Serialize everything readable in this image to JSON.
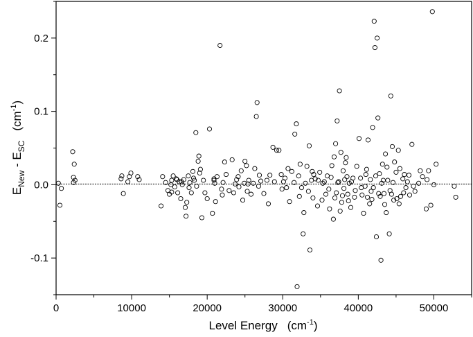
{
  "chart_data": {
    "type": "scatter",
    "title": "",
    "xlabel": {
      "main": "Level Energy",
      "unit_open": "(cm",
      "unit_sup": "-1",
      "unit_close": ")"
    },
    "ylabel": {
      "e1": "E",
      "sub1": "New",
      "mid": " - E",
      "sub2": "SC",
      "unit_open": "(cm",
      "unit_sup": "-1",
      "unit_close": ")"
    },
    "xlim": [
      0,
      55000
    ],
    "ylim": [
      -0.15,
      0.25
    ],
    "x_ticks": [
      0,
      10000,
      20000,
      30000,
      40000,
      50000
    ],
    "x_tick_labels": [
      "0",
      "10000",
      "20000",
      "30000",
      "40000",
      "50000"
    ],
    "y_ticks": [
      -0.1,
      0.0,
      0.1,
      0.2
    ],
    "y_tick_labels": [
      "-0.1",
      "0.0",
      "0.1",
      "0.2"
    ],
    "x_minor_step": 5000,
    "y_minor_step": 0.05,
    "reference_line": {
      "y": 0.001,
      "style": "dotted"
    },
    "grid": false,
    "marker": "open-circle",
    "points": [
      [
        300,
        0.002
      ],
      [
        500,
        -0.028
      ],
      [
        700,
        -0.005
      ],
      [
        2200,
        0.045
      ],
      [
        2300,
        0.01
      ],
      [
        2400,
        0.028
      ],
      [
        2300,
        0.003
      ],
      [
        2500,
        0.006
      ],
      [
        8600,
        0.008
      ],
      [
        8700,
        0.012
      ],
      [
        8900,
        -0.012
      ],
      [
        9500,
        0.004
      ],
      [
        9700,
        0.011
      ],
      [
        9900,
        0.016
      ],
      [
        10800,
        0.011
      ],
      [
        11000,
        0.007
      ],
      [
        13900,
        -0.029
      ],
      [
        14100,
        0.011
      ],
      [
        14500,
        0.003
      ],
      [
        14800,
        -0.008
      ],
      [
        15000,
        -0.013
      ],
      [
        15200,
        0.0
      ],
      [
        15300,
        0.006
      ],
      [
        15500,
        0.012
      ],
      [
        15700,
        -0.003
      ],
      [
        15900,
        0.008
      ],
      [
        16100,
        -0.011
      ],
      [
        16300,
        0.004
      ],
      [
        16500,
        -0.019
      ],
      [
        16700,
        0.0
      ],
      [
        16900,
        0.007
      ],
      [
        17100,
        -0.031
      ],
      [
        17200,
        -0.043
      ],
      [
        17300,
        -0.024
      ],
      [
        17500,
        0.012
      ],
      [
        17700,
        0.003
      ],
      [
        17900,
        -0.011
      ],
      [
        18100,
        0.018
      ],
      [
        18300,
        0.006
      ],
      [
        18500,
        0.071
      ],
      [
        18600,
        -0.002
      ],
      [
        18800,
        0.032
      ],
      [
        18900,
        0.039
      ],
      [
        19100,
        0.021
      ],
      [
        19300,
        -0.045
      ],
      [
        19500,
        0.006
      ],
      [
        19700,
        -0.011
      ],
      [
        20000,
        -0.019
      ],
      [
        20300,
        0.076
      ],
      [
        20700,
        -0.039
      ],
      [
        20900,
        0.008
      ],
      [
        21000,
        0.002
      ],
      [
        21100,
        -0.023
      ],
      [
        21300,
        0.011
      ],
      [
        21700,
        0.19
      ],
      [
        21900,
        -0.006
      ],
      [
        22100,
        0.003
      ],
      [
        22300,
        0.031
      ],
      [
        22500,
        0.014
      ],
      [
        22900,
        -0.008
      ],
      [
        23300,
        0.034
      ],
      [
        23500,
        -0.011
      ],
      [
        23900,
        0.007
      ],
      [
        24200,
        -0.003
      ],
      [
        24500,
        0.019
      ],
      [
        24700,
        -0.021
      ],
      [
        24900,
        0.002
      ],
      [
        25000,
        0.032
      ],
      [
        25200,
        0.026
      ],
      [
        25300,
        -0.009
      ],
      [
        25500,
        0.006
      ],
      [
        25800,
        -0.013
      ],
      [
        26100,
        0.002
      ],
      [
        26300,
        0.022
      ],
      [
        26500,
        0.093
      ],
      [
        26600,
        0.112
      ],
      [
        26800,
        -0.002
      ],
      [
        27100,
        0.005
      ],
      [
        27500,
        -0.012
      ],
      [
        28100,
        -0.026
      ],
      [
        28300,
        0.013
      ],
      [
        28700,
        0.051
      ],
      [
        28900,
        0.004
      ],
      [
        29200,
        0.047
      ],
      [
        29500,
        0.047
      ],
      [
        29800,
        0.014
      ],
      [
        30100,
        0.004
      ],
      [
        30500,
        -0.004
      ],
      [
        30700,
        0.022
      ],
      [
        30900,
        -0.023
      ],
      [
        31200,
        0.018
      ],
      [
        31600,
        0.069
      ],
      [
        31800,
        0.083
      ],
      [
        31900,
        -0.139
      ],
      [
        32100,
        0.012
      ],
      [
        32300,
        0.028
      ],
      [
        32700,
        -0.067
      ],
      [
        32800,
        -0.038
      ],
      [
        33000,
        0.002
      ],
      [
        33200,
        0.025
      ],
      [
        33400,
        -0.009
      ],
      [
        33500,
        0.053
      ],
      [
        33600,
        -0.089
      ],
      [
        33800,
        0.006
      ],
      [
        34000,
        -0.018
      ],
      [
        34300,
        0.008
      ],
      [
        34600,
        -0.029
      ],
      [
        34900,
        0.017
      ],
      [
        35200,
        -0.021
      ],
      [
        35500,
        0.004
      ],
      [
        35900,
        0.012
      ],
      [
        36200,
        -0.033
      ],
      [
        36500,
        0.026
      ],
      [
        36700,
        -0.047
      ],
      [
        36800,
        0.038
      ],
      [
        37000,
        0.056
      ],
      [
        37100,
        -0.011
      ],
      [
        37200,
        0.087
      ],
      [
        37400,
        0.004
      ],
      [
        37500,
        0.128
      ],
      [
        37700,
        0.044
      ],
      [
        37800,
        -0.024
      ],
      [
        38000,
        0.019
      ],
      [
        38200,
        0.007
      ],
      [
        38400,
        0.037
      ],
      [
        38600,
        -0.013
      ],
      [
        38800,
        0.002
      ],
      [
        39000,
        -0.031
      ],
      [
        39300,
        0.009
      ],
      [
        39500,
        -0.017
      ],
      [
        39800,
        0.025
      ],
      [
        40100,
        0.063
      ],
      [
        40400,
        -0.004
      ],
      [
        40700,
        -0.039
      ],
      [
        41000,
        0.014
      ],
      [
        41300,
        0.061
      ],
      [
        41500,
        -0.026
      ],
      [
        41700,
        -0.009
      ],
      [
        41900,
        0.078
      ],
      [
        42100,
        0.223
      ],
      [
        42200,
        0.187
      ],
      [
        42400,
        -0.071
      ],
      [
        42500,
        0.2
      ],
      [
        42600,
        0.091
      ],
      [
        42800,
        0.015
      ],
      [
        43000,
        -0.103
      ],
      [
        43200,
        0.028
      ],
      [
        43400,
        -0.012
      ],
      [
        43600,
        0.042
      ],
      [
        43900,
        0.006
      ],
      [
        44100,
        -0.067
      ],
      [
        44300,
        0.121
      ],
      [
        44500,
        0.052
      ],
      [
        44700,
        -0.021
      ],
      [
        45000,
        0.017
      ],
      [
        45300,
        0.047
      ],
      [
        45600,
        -0.016
      ],
      [
        45900,
        0.008
      ],
      [
        46300,
        -0.004
      ],
      [
        46700,
        0.013
      ],
      [
        47100,
        0.055
      ],
      [
        47500,
        -0.009
      ],
      [
        48000,
        0.002
      ],
      [
        48500,
        0.011
      ],
      [
        49000,
        -0.033
      ],
      [
        49300,
        0.019
      ],
      [
        49600,
        -0.028
      ],
      [
        49800,
        0.236
      ],
      [
        50000,
        0.0
      ],
      [
        50300,
        0.028
      ],
      [
        52700,
        -0.002
      ],
      [
        52900,
        -0.017
      ],
      [
        15300,
        -0.01
      ],
      [
        16600,
        0.004
      ],
      [
        19000,
        0.016
      ],
      [
        20900,
        0.006
      ],
      [
        24100,
        0.011
      ],
      [
        25400,
        0.001
      ],
      [
        26900,
        0.013
      ],
      [
        29900,
        -0.006
      ],
      [
        31500,
        0.003
      ],
      [
        32500,
        -0.004
      ],
      [
        34100,
        0.014
      ],
      [
        35300,
        0.002
      ],
      [
        36100,
        -0.006
      ],
      [
        36900,
        -0.018
      ],
      [
        37300,
        0.003
      ],
      [
        37600,
        -0.036
      ],
      [
        38100,
        -0.005
      ],
      [
        38500,
        0.011
      ],
      [
        39100,
        0.004
      ],
      [
        39600,
        -0.008
      ],
      [
        40300,
        0.009
      ],
      [
        40900,
        -0.002
      ],
      [
        41200,
        -0.017
      ],
      [
        41600,
        0.007
      ],
      [
        42000,
        -0.004
      ],
      [
        42300,
        0.012
      ],
      [
        42700,
        -0.012
      ],
      [
        43100,
        0.002
      ],
      [
        43500,
        -0.027
      ],
      [
        43800,
        0.024
      ],
      [
        44200,
        -0.008
      ],
      [
        44600,
        0.003
      ],
      [
        45100,
        -0.019
      ],
      [
        45500,
        0.022
      ],
      [
        46000,
        -0.011
      ],
      [
        46500,
        0.004
      ],
      [
        47300,
        -0.002
      ],
      [
        48200,
        0.019
      ],
      [
        49100,
        0.007
      ],
      [
        37900,
        -0.015
      ],
      [
        38300,
        0.03
      ],
      [
        38700,
        -0.022
      ],
      [
        40500,
        -0.014
      ],
      [
        41100,
        0.021
      ],
      [
        41800,
        -0.02
      ],
      [
        42900,
        -0.016
      ],
      [
        43300,
        0.006
      ],
      [
        43700,
        -0.038
      ],
      [
        44400,
        -0.013
      ],
      [
        44800,
        0.031
      ],
      [
        45400,
        -0.026
      ],
      [
        46100,
        0.014
      ],
      [
        46800,
        -0.014
      ],
      [
        36400,
        0.01
      ],
      [
        35700,
        -0.013
      ],
      [
        34700,
        0.006
      ],
      [
        33900,
        0.018
      ],
      [
        32200,
        -0.016
      ],
      [
        30300,
        0.009
      ],
      [
        27900,
        0.006
      ],
      [
        23700,
        0.001
      ],
      [
        22000,
        -0.014
      ],
      [
        18200,
        0.009
      ],
      [
        17600,
        -0.004
      ],
      [
        16000,
        0.007
      ]
    ]
  }
}
